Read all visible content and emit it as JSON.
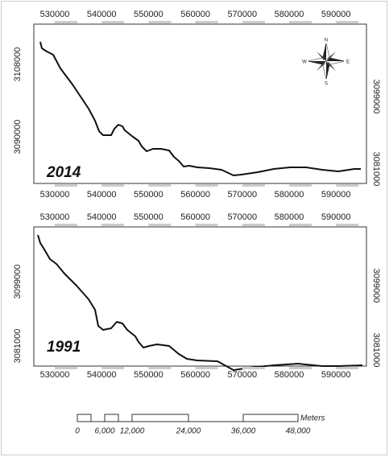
{
  "panels": [
    {
      "year": "2014",
      "top_x_labels": [
        "530000",
        "540000",
        "550000",
        "560000",
        "570000",
        "580000",
        "590000"
      ],
      "bottom_x_labels": [
        "530000",
        "540000",
        "550000",
        "560000",
        "570000",
        "580000",
        "590000"
      ],
      "left_y_labels": [
        "3108000",
        "3090000"
      ],
      "right_y_labels": [
        "3099000",
        "3081000"
      ]
    },
    {
      "year": "1991",
      "top_x_labels": [
        "530000",
        "540000",
        "550000",
        "560000",
        "570000",
        "580000",
        "590000"
      ],
      "bottom_x_labels": [
        "530000",
        "540000",
        "550000",
        "560000",
        "570000",
        "580000",
        "590000"
      ],
      "left_y_labels": [
        "3099000",
        "3081000"
      ],
      "right_y_labels": [
        "3099000",
        "3081000"
      ]
    }
  ],
  "compass": {
    "n": "N",
    "s": "S",
    "e": "E",
    "w": "W"
  },
  "scale_bar": {
    "labels": [
      "0",
      "6,000",
      "12,000",
      "24,000",
      "36,000",
      "48,000"
    ],
    "unit": "Meters"
  }
}
